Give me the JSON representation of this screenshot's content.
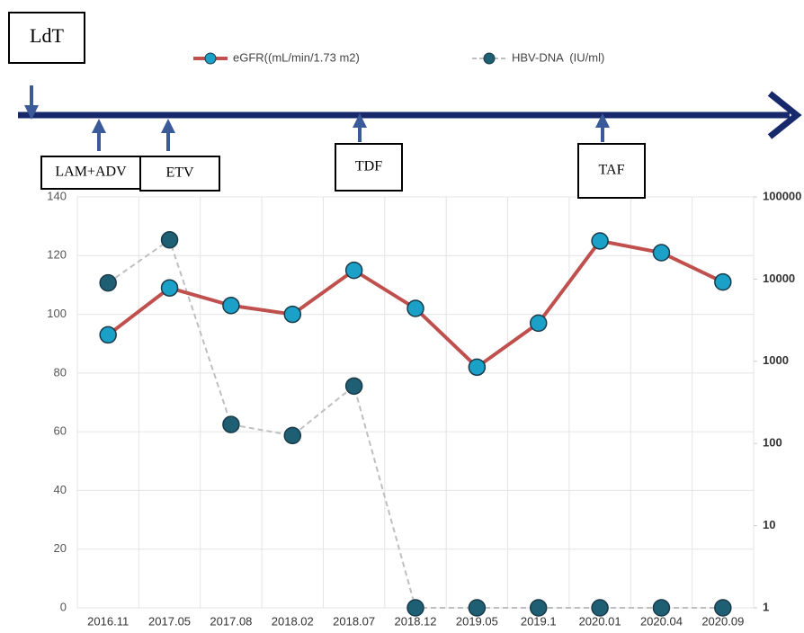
{
  "chart_data": {
    "type": "line",
    "annotations": [
      "LdT",
      "LAM+ADV",
      "ETV",
      "TDF",
      "TAF"
    ],
    "categories": [
      "2016.11",
      "2017.05",
      "2017.08",
      "2018.02",
      "2018.07",
      "2018.12",
      "2019.05",
      "2019.1",
      "2020.01",
      "2020.04",
      "2020.09"
    ],
    "series": [
      {
        "name": "eGFR((mL/min/1.73 m2)",
        "color": "#c0504d",
        "marker_color": "#1ba1c8",
        "values": [
          93,
          109,
          103,
          100,
          115,
          102,
          82,
          97,
          125,
          121,
          111
        ]
      },
      {
        "name": "HBV-DNA  (IU/ml)",
        "color": "#bfbfbf",
        "marker_color": "#1f5f73",
        "axis": "y2",
        "values": [
          9000,
          30000,
          170,
          125,
          500,
          1,
          1,
          1,
          1,
          1,
          1
        ]
      }
    ],
    "ylim": [
      0,
      140
    ],
    "yticks": [
      0,
      20,
      40,
      60,
      80,
      100,
      120,
      140
    ],
    "y2lim": [
      1,
      100000
    ],
    "y2ticks": [
      1,
      10,
      100,
      1000,
      10000,
      100000
    ],
    "y2scale": "log",
    "grid": true
  }
}
